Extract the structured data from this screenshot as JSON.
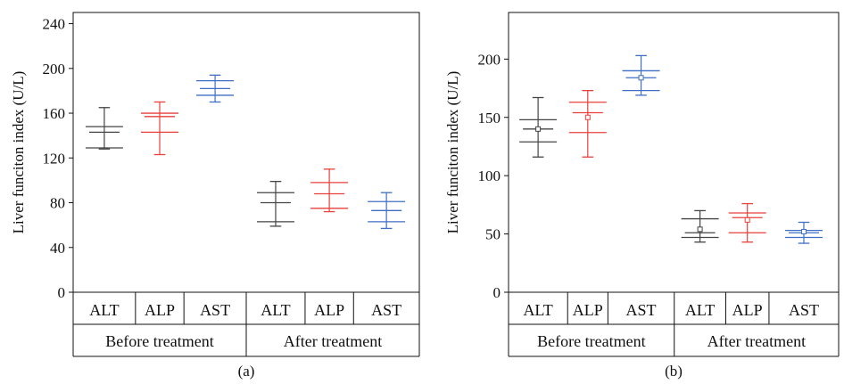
{
  "chart_data": [
    {
      "type": "boxplot",
      "panel_label": "(a)",
      "ylabel": "Liver funciton index (U/L)",
      "ylim": [
        0,
        250
      ],
      "yticks": [
        0,
        40,
        80,
        120,
        160,
        200,
        240
      ],
      "categories": [
        "ALT",
        "ALP",
        "AST",
        "ALT",
        "ALP",
        "AST"
      ],
      "groups": [
        {
          "label": "Before treatment",
          "span": [
            0,
            2
          ]
        },
        {
          "label": "After treatment",
          "span": [
            3,
            5
          ]
        }
      ],
      "boxes": [
        {
          "category": "ALT",
          "group": "Before treatment",
          "color": "#444444",
          "whisker_low": 128,
          "q1": 129,
          "median": 143,
          "q3": 148,
          "whisker_high": 165,
          "mean": null
        },
        {
          "category": "ALP",
          "group": "Before treatment",
          "color": "#e8413c",
          "whisker_low": 123,
          "q1": 143,
          "median": 157,
          "q3": 160,
          "whisker_high": 170,
          "mean": null
        },
        {
          "category": "AST",
          "group": "Before treatment",
          "color": "#3f6fc4",
          "whisker_low": 170,
          "q1": 176,
          "median": 182,
          "q3": 189,
          "whisker_high": 194,
          "mean": null
        },
        {
          "category": "ALT",
          "group": "After treatment",
          "color": "#444444",
          "whisker_low": 59,
          "q1": 63,
          "median": 80,
          "q3": 89,
          "whisker_high": 99,
          "mean": null
        },
        {
          "category": "ALP",
          "group": "After treatment",
          "color": "#e8413c",
          "whisker_low": 72,
          "q1": 75,
          "median": 88,
          "q3": 98,
          "whisker_high": 110,
          "mean": null
        },
        {
          "category": "AST",
          "group": "After treatment",
          "color": "#3f6fc4",
          "whisker_low": 57,
          "q1": 63,
          "median": 73,
          "q3": 81,
          "whisker_high": 89,
          "mean": null
        }
      ]
    },
    {
      "type": "boxplot",
      "panel_label": "(b)",
      "ylabel": "Liver funciton index (U/L)",
      "ylim": [
        0,
        240
      ],
      "yticks": [
        0,
        50,
        100,
        150,
        200
      ],
      "categories": [
        "ALT",
        "ALP",
        "AST",
        "ALT",
        "ALP",
        "AST"
      ],
      "groups": [
        {
          "label": "Before treatment",
          "span": [
            0,
            2
          ]
        },
        {
          "label": "After treatment",
          "span": [
            3,
            5
          ]
        }
      ],
      "boxes": [
        {
          "category": "ALT",
          "group": "Before treatment",
          "color": "#444444",
          "whisker_low": 116,
          "q1": 129,
          "median": 140,
          "q3": 148,
          "whisker_high": 167,
          "mean": 140
        },
        {
          "category": "ALP",
          "group": "Before treatment",
          "color": "#e8413c",
          "whisker_low": 116,
          "q1": 137,
          "median": 154,
          "q3": 163,
          "whisker_high": 173,
          "mean": 150
        },
        {
          "category": "AST",
          "group": "Before treatment",
          "color": "#3f6fc4",
          "whisker_low": 169,
          "q1": 173,
          "median": 184,
          "q3": 190,
          "whisker_high": 203,
          "mean": 184
        },
        {
          "category": "ALT",
          "group": "After treatment",
          "color": "#444444",
          "whisker_low": 43,
          "q1": 47,
          "median": 51,
          "q3": 63,
          "whisker_high": 70,
          "mean": 54
        },
        {
          "category": "ALP",
          "group": "After treatment",
          "color": "#e8413c",
          "whisker_low": 43,
          "q1": 51,
          "median": 64,
          "q3": 68,
          "whisker_high": 76,
          "mean": 62
        },
        {
          "category": "AST",
          "group": "After treatment",
          "color": "#3f6fc4",
          "whisker_low": 42,
          "q1": 47,
          "median": 51,
          "q3": 53,
          "whisker_high": 60,
          "mean": 52
        }
      ]
    }
  ]
}
